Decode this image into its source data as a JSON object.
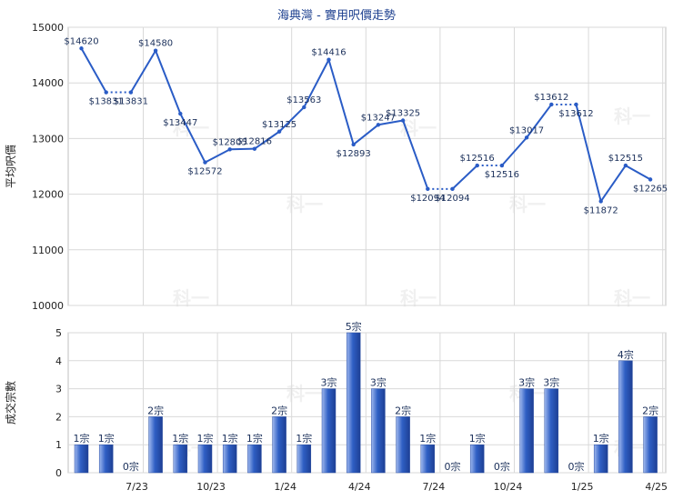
{
  "chart_data": [
    {
      "type": "line",
      "title": "海典灣 - 實用呎價走勢",
      "ylabel": "平均呎價",
      "ylim": [
        10000,
        15000
      ],
      "yticks": [
        10000,
        11000,
        12000,
        13000,
        14000,
        15000
      ],
      "grid": true,
      "series": [
        {
          "values": [
            14620,
            13831,
            13831,
            14580,
            13447,
            12572,
            12805,
            12816,
            13125,
            13563,
            14416,
            12893,
            13247,
            13325,
            12094,
            12094,
            12516,
            12516,
            13017,
            13612,
            13612,
            11872,
            12515,
            12265
          ],
          "labels": [
            "$14620",
            "$13831",
            "$13831",
            "$14580",
            "$13447",
            "$12572",
            "$12805",
            "$12816",
            "$13125",
            "$13563",
            "$14416",
            "$12893",
            "$13247",
            "$13325",
            "$12094",
            "$12094",
            "$12516",
            "$12516",
            "$13017",
            "$13612",
            "$13612",
            "$11872",
            "$12515",
            "$12265"
          ],
          "no_transaction_segments": [
            [
              1,
              2
            ],
            [
              14,
              15
            ],
            [
              16,
              17
            ],
            [
              19,
              20
            ]
          ]
        }
      ],
      "color": "#2a5cc6"
    },
    {
      "type": "bar",
      "ylabel": "成交宗數",
      "ylim": [
        0,
        5
      ],
      "yticks": [
        0,
        1,
        2,
        3,
        4,
        5
      ],
      "grid": true,
      "values": [
        1,
        1,
        0,
        2,
        1,
        1,
        1,
        1,
        2,
        1,
        3,
        5,
        3,
        2,
        1,
        0,
        1,
        0,
        3,
        3,
        0,
        1,
        4,
        2
      ],
      "labels": [
        "1宗",
        "1宗",
        "0宗",
        "2宗",
        "1宗",
        "1宗",
        "1宗",
        "1宗",
        "2宗",
        "1宗",
        "3宗",
        "5宗",
        "3宗",
        "2宗",
        "1宗",
        "0宗",
        "1宗",
        "0宗",
        "3宗",
        "3宗",
        "0宗",
        "1宗",
        "4宗",
        "2宗"
      ],
      "color": "#2f5fc4"
    }
  ],
  "x_tick_labels": [
    {
      "index": 2,
      "label": "7/23"
    },
    {
      "index": 5,
      "label": "10/23"
    },
    {
      "index": 8,
      "label": "1/24"
    },
    {
      "index": 11,
      "label": "4/24"
    },
    {
      "index": 14,
      "label": "7/24"
    },
    {
      "index": 17,
      "label": "10/24"
    },
    {
      "index": 20,
      "label": "1/25"
    },
    {
      "index": 23,
      "label": "4/25"
    }
  ],
  "watermark": "科一"
}
